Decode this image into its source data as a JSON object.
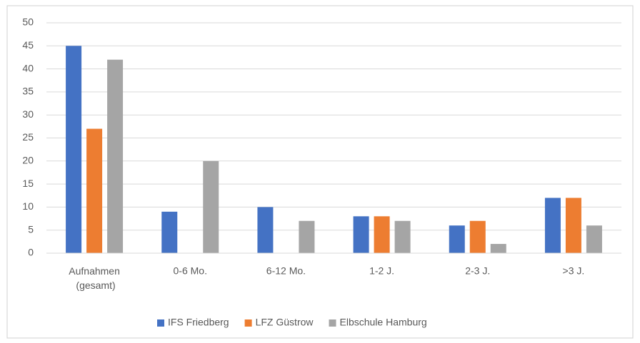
{
  "chart_data": {
    "type": "bar",
    "categories": [
      "Aufnahmen (gesamt)",
      "0-6 Mo.",
      "6-12 Mo.",
      "1-2 J.",
      "2-3 J.",
      ">3 J."
    ],
    "series": [
      {
        "name": "IFS Friedberg",
        "color": "#4472c4",
        "values": [
          45,
          9,
          10,
          8,
          6,
          12
        ]
      },
      {
        "name": "LFZ Güstrow",
        "color": "#ed7d31",
        "values": [
          27,
          0,
          0,
          8,
          7,
          12
        ]
      },
      {
        "name": "Elbschule Hamburg",
        "color": "#a5a5a5",
        "values": [
          42,
          20,
          7,
          7,
          2,
          6
        ]
      }
    ],
    "ylim": [
      0,
      50
    ],
    "yticks": [
      0,
      5,
      10,
      15,
      20,
      25,
      30,
      35,
      40,
      45,
      50
    ],
    "grid": true,
    "legend": "bottom"
  }
}
